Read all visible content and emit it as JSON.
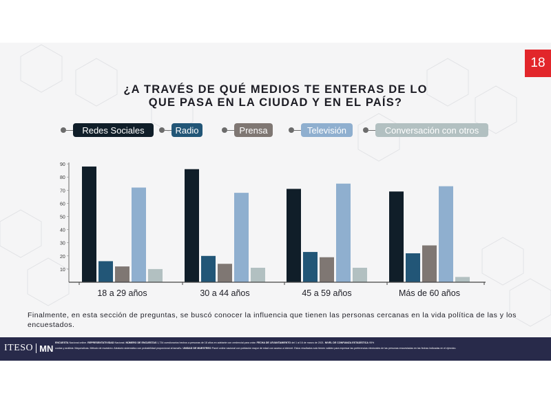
{
  "page_number": "18",
  "title_line1": "¿A TRAVÉS DE QUÉ MEDIOS TE ENTERAS DE LO",
  "title_line2": "QUE PASA EN LA CIUDAD Y EN EL PAÍS?",
  "colors": {
    "redes": "#101e29",
    "radio": "#225677",
    "prensa": "#7f7773",
    "television": "#8fafcf",
    "conversacion": "#b2c0c1",
    "badge": "#e2262b",
    "footer": "#282a4a"
  },
  "chart_data": {
    "type": "bar",
    "categories": [
      "18 a 29 años",
      "30 a 44 años",
      "45 a 59 años",
      "Más de 60 años"
    ],
    "series": [
      {
        "name": "Redes Sociales",
        "values": [
          88,
          86,
          71,
          69
        ]
      },
      {
        "name": "Radio",
        "values": [
          16,
          20,
          23,
          22
        ]
      },
      {
        "name": "Prensa",
        "values": [
          12,
          14,
          19,
          28
        ]
      },
      {
        "name": "Televisión",
        "values": [
          72,
          68,
          75,
          73
        ]
      },
      {
        "name": "Conversación con otros",
        "values": [
          10,
          11,
          11,
          4
        ]
      }
    ],
    "ylim": [
      0,
      90
    ],
    "yticks": [
      "10",
      "20",
      "30",
      "40",
      "50",
      "60",
      "70",
      "80",
      "90"
    ],
    "legend_position": "top",
    "grid": false
  },
  "footnote": "Finalmente, en esta sección de preguntas, se buscó conocer la influencia que tienen las personas cercanas en la vida política de las y los encuestados.",
  "footer": {
    "logo_left": "ITESO",
    "logo_right": "MN",
    "line1": [
      {
        "label": "ENCUESTA",
        "text": "Nacional online."
      },
      {
        "label": "REPRESENTATIVIDAD",
        "text": "Nacional."
      },
      {
        "label": "NÚMERO DE ENCUESTAS",
        "text": "1,734 cuestionarios hechos a personas de 18 años en adelante con credencial para votar."
      },
      {
        "label": "FECHA DE LEVANTAMIENTO",
        "text": "del 1 al 16 de marzo de 2021."
      },
      {
        "label": "NIVEL DE CONFIANZA ESTADÍSTICA",
        "text": "95%"
      }
    ],
    "line2": [
      {
        "label": "",
        "text": "cuotas y análisis: Mayorsdicas. Método de muestreo: Aleatorio sistemático con probabilidad proporcional al tamaño."
      },
      {
        "label": "UNIDAD DE MUESTREO",
        "text": "Panel online nacional con población mayor de edad con acceso a internet."
      },
      {
        "label": "",
        "text": "Estos resultados solo tienen validez para expresar las preferencias electorales de las personas encuestadas en las fechas indicadas en el ejercicio."
      }
    ]
  }
}
